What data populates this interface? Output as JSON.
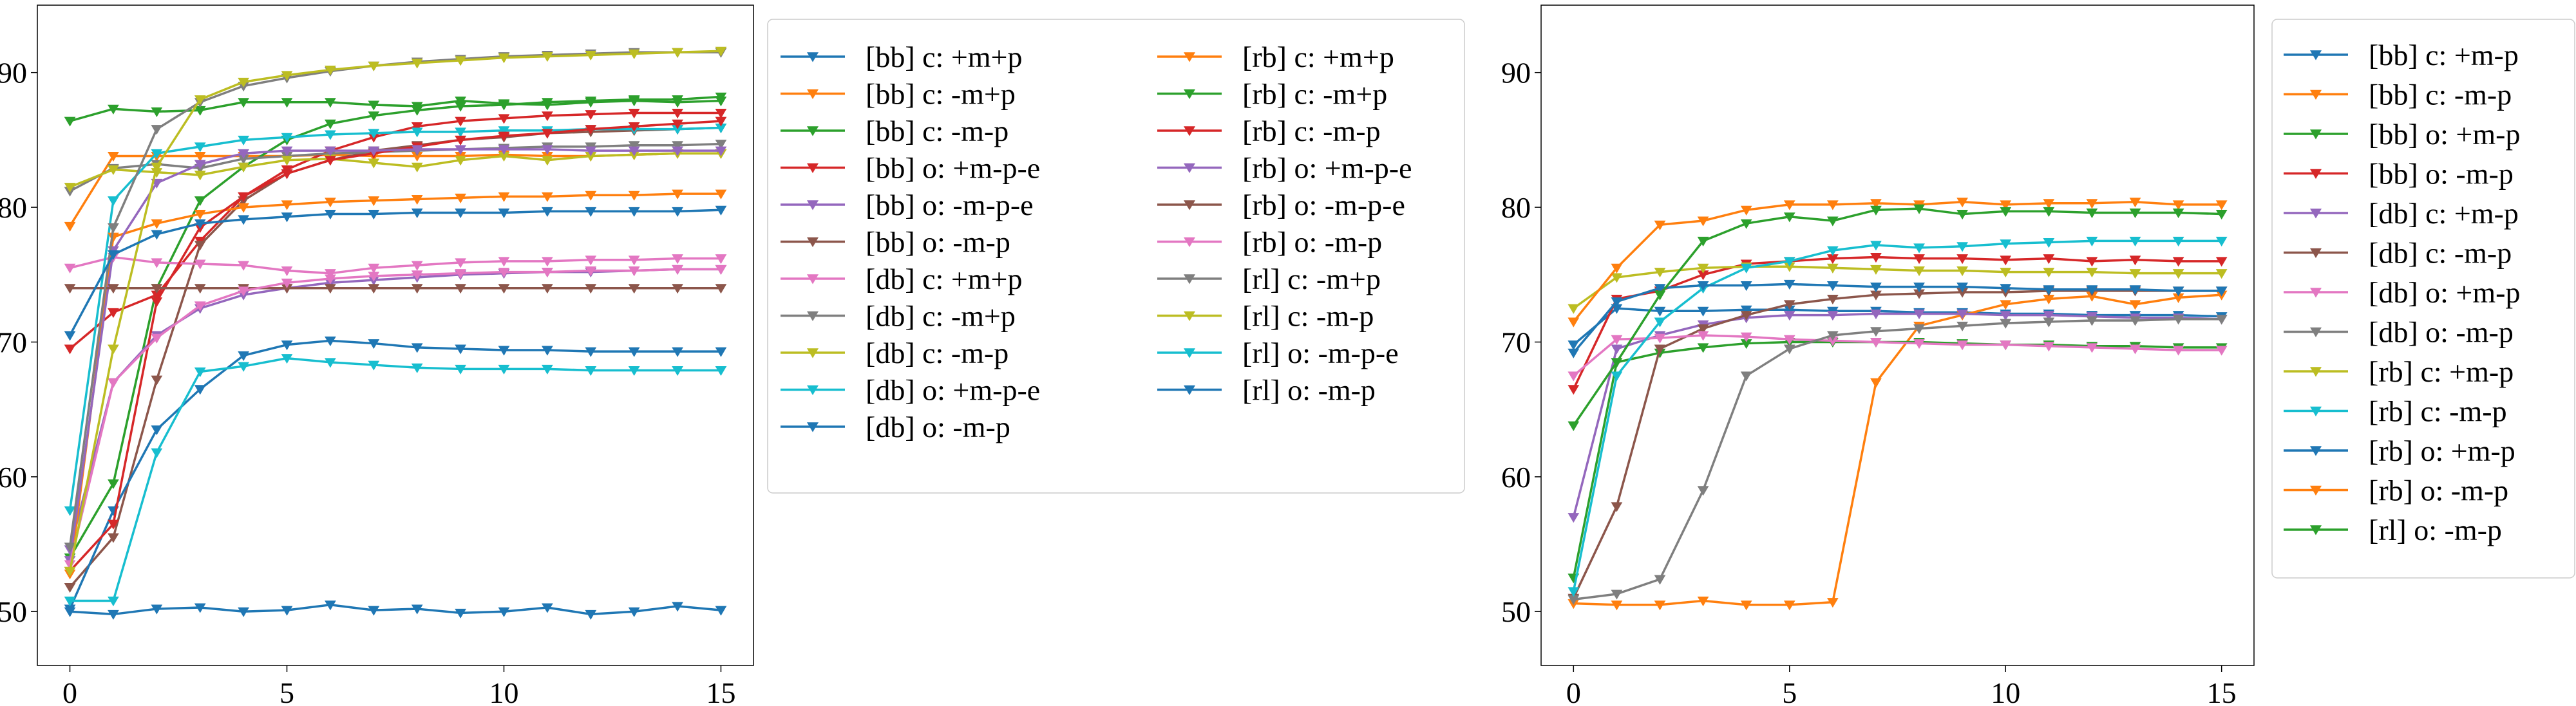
{
  "palette": [
    "#1f77b4",
    "#ff7f0e",
    "#2ca02c",
    "#d62728",
    "#9467bd",
    "#8c564b",
    "#e377c2",
    "#7f7f7f",
    "#bcbd22",
    "#17becf"
  ],
  "marker": "triangle-down",
  "chart_data": [
    {
      "type": "line",
      "title": "",
      "xlabel": "",
      "ylabel": "",
      "xlim": [
        -0.75,
        15.75
      ],
      "ylim": [
        46,
        95
      ],
      "xticks": [
        0,
        5,
        10,
        15
      ],
      "yticks": [
        50,
        60,
        70,
        80,
        90
      ],
      "grid": false,
      "legend_position": "right",
      "legend_columns": 2,
      "x": [
        0,
        1,
        2,
        3,
        4,
        5,
        6,
        7,
        8,
        9,
        10,
        11,
        12,
        13,
        14,
        15
      ],
      "series": [
        {
          "name": "[bb] c: +m+p",
          "color": "#1f77b4",
          "values": [
            50.0,
            49.8,
            50.2,
            50.3,
            50.0,
            50.1,
            50.5,
            50.1,
            50.2,
            49.9,
            50.0,
            50.3,
            49.8,
            50.0,
            50.4,
            50.1
          ]
        },
        {
          "name": "[bb] c: -m+p",
          "color": "#ff7f0e",
          "values": [
            78.6,
            83.8,
            83.8,
            83.8,
            83.8,
            83.8,
            83.9,
            83.8,
            83.8,
            83.8,
            83.9,
            83.8,
            83.8,
            83.9,
            84.0,
            84.0
          ]
        },
        {
          "name": "[bb] c: -m-p",
          "color": "#2ca02c",
          "values": [
            54.0,
            59.5,
            74.0,
            80.5,
            83.0,
            85.0,
            86.2,
            86.8,
            87.2,
            87.5,
            87.6,
            87.8,
            87.9,
            88.0,
            88.0,
            88.2
          ]
        },
        {
          "name": "[bb] o: +m-p-e",
          "color": "#d62728",
          "values": [
            69.5,
            72.2,
            73.5,
            77.5,
            80.8,
            82.8,
            84.2,
            85.2,
            86.0,
            86.4,
            86.6,
            86.8,
            86.9,
            87.0,
            87.0,
            87.0
          ]
        },
        {
          "name": "[bb] o: -m-p-e",
          "color": "#9467bd",
          "values": [
            54.6,
            67.0,
            70.5,
            72.5,
            73.5,
            74.0,
            74.4,
            74.6,
            74.8,
            75.0,
            75.1,
            75.2,
            75.2,
            75.3,
            75.4,
            75.4
          ]
        },
        {
          "name": "[bb] o: -m-p",
          "color": "#8c564b",
          "values": [
            51.8,
            55.5,
            67.2,
            77.2,
            80.5,
            82.5,
            83.5,
            84.2,
            84.6,
            85.0,
            85.2,
            85.5,
            85.6,
            85.7,
            85.8,
            85.9
          ]
        },
        {
          "name": "[db] c: +m+p",
          "color": "#e377c2",
          "values": [
            75.5,
            76.3,
            75.9,
            75.8,
            75.7,
            75.3,
            75.1,
            75.5,
            75.7,
            75.9,
            76.0,
            76.0,
            76.1,
            76.1,
            76.2,
            76.2
          ]
        },
        {
          "name": "[db] c: -m+p",
          "color": "#7f7f7f",
          "values": [
            81.2,
            82.9,
            83.2,
            82.9,
            83.6,
            83.8,
            84.0,
            84.1,
            84.2,
            84.3,
            84.4,
            84.5,
            84.5,
            84.6,
            84.6,
            84.7
          ]
        },
        {
          "name": "[db] c: -m-p",
          "color": "#bcbd22",
          "values": [
            81.5,
            82.8,
            82.6,
            82.4,
            83.0,
            83.5,
            83.6,
            83.3,
            83.0,
            83.5,
            83.8,
            83.5,
            83.8,
            83.9,
            84.0,
            84.0
          ]
        },
        {
          "name": "[db] o: +m-p-e",
          "color": "#17becf",
          "values": [
            57.5,
            80.5,
            84.0,
            84.5,
            85.0,
            85.2,
            85.4,
            85.5,
            85.6,
            85.6,
            85.7,
            85.7,
            85.8,
            85.8,
            85.8,
            85.9
          ]
        },
        {
          "name": "[db] o: -m-p",
          "color": "#1f77b4",
          "values": [
            50.2,
            57.5,
            63.5,
            66.5,
            69.0,
            69.8,
            70.1,
            69.9,
            69.6,
            69.5,
            69.4,
            69.4,
            69.3,
            69.3,
            69.3,
            69.3
          ]
        },
        {
          "name": "[rb] c: +m+p",
          "color": "#ff7f0e",
          "values": [
            52.8,
            77.8,
            78.8,
            79.5,
            80.0,
            80.2,
            80.4,
            80.5,
            80.6,
            80.7,
            80.8,
            80.8,
            80.9,
            80.9,
            81.0,
            81.0
          ]
        },
        {
          "name": "[rb] c: -m+p",
          "color": "#2ca02c",
          "values": [
            86.4,
            87.3,
            87.1,
            87.2,
            87.8,
            87.8,
            87.8,
            87.6,
            87.5,
            87.9,
            87.7,
            87.6,
            87.8,
            87.9,
            87.8,
            87.9
          ]
        },
        {
          "name": "[rb] c: -m-p",
          "color": "#d62728",
          "values": [
            53.0,
            56.5,
            73.0,
            78.5,
            80.8,
            82.5,
            83.5,
            84.0,
            84.5,
            85.0,
            85.3,
            85.5,
            85.8,
            86.0,
            86.2,
            86.4
          ]
        },
        {
          "name": "[rb] o: +m-p-e",
          "color": "#9467bd",
          "values": [
            53.8,
            76.8,
            81.8,
            83.2,
            84.0,
            84.2,
            84.2,
            84.2,
            84.3,
            84.3,
            84.3,
            84.3,
            84.2,
            84.2,
            84.2,
            84.2
          ]
        },
        {
          "name": "[rb] o: -m-p-e",
          "color": "#8c564b",
          "values": [
            74.0,
            74.0,
            74.0,
            74.0,
            74.0,
            74.0,
            74.0,
            74.0,
            74.0,
            74.0,
            74.0,
            74.0,
            74.0,
            74.0,
            74.0,
            74.0
          ]
        },
        {
          "name": "[rb] o: -m-p",
          "color": "#e377c2",
          "values": [
            53.5,
            67.0,
            70.3,
            72.7,
            73.8,
            74.4,
            74.7,
            74.9,
            75.0,
            75.1,
            75.2,
            75.2,
            75.3,
            75.3,
            75.4,
            75.4
          ]
        },
        {
          "name": "[rl] c: -m+p",
          "color": "#7f7f7f",
          "values": [
            54.8,
            78.5,
            85.8,
            87.8,
            89.0,
            89.6,
            90.1,
            90.5,
            90.8,
            91.0,
            91.2,
            91.3,
            91.4,
            91.5,
            91.5,
            91.5
          ]
        },
        {
          "name": "[rl] c: -m-p",
          "color": "#bcbd22",
          "values": [
            53.0,
            69.5,
            83.0,
            88.0,
            89.3,
            89.8,
            90.2,
            90.5,
            90.7,
            90.9,
            91.1,
            91.2,
            91.3,
            91.4,
            91.5,
            91.6
          ]
        },
        {
          "name": "[rl] o: -m-p-e",
          "color": "#17becf",
          "values": [
            50.8,
            50.8,
            61.8,
            67.8,
            68.2,
            68.8,
            68.5,
            68.3,
            68.1,
            68.0,
            68.0,
            68.0,
            67.9,
            67.9,
            67.9,
            67.9
          ]
        },
        {
          "name": "[rl] o: -m-p",
          "color": "#1f77b4",
          "values": [
            70.5,
            76.5,
            78.0,
            78.8,
            79.1,
            79.3,
            79.5,
            79.5,
            79.6,
            79.6,
            79.6,
            79.7,
            79.7,
            79.7,
            79.7,
            79.8
          ]
        }
      ]
    },
    {
      "type": "line",
      "title": "",
      "xlabel": "",
      "ylabel": "",
      "xlim": [
        -0.75,
        15.75
      ],
      "ylim": [
        46,
        95
      ],
      "xticks": [
        0,
        5,
        10,
        15
      ],
      "yticks": [
        50,
        60,
        70,
        80,
        90
      ],
      "grid": false,
      "legend_position": "outside right",
      "legend_columns": 1,
      "x": [
        0,
        1,
        2,
        3,
        4,
        5,
        6,
        7,
        8,
        9,
        10,
        11,
        12,
        13,
        14,
        15
      ],
      "series": [
        {
          "name": "[bb] c: +m-p",
          "color": "#1f77b4",
          "values": [
            69.8,
            72.5,
            72.3,
            72.3,
            72.4,
            72.4,
            72.3,
            72.3,
            72.2,
            72.2,
            72.1,
            72.1,
            72.0,
            72.0,
            72.0,
            71.9
          ]
        },
        {
          "name": "[bb] c: -m-p",
          "color": "#ff7f0e",
          "values": [
            50.6,
            50.5,
            50.5,
            50.8,
            50.5,
            50.5,
            50.7,
            67.0,
            71.2,
            72.0,
            72.8,
            73.2,
            73.4,
            72.8,
            73.3,
            73.5
          ]
        },
        {
          "name": "[bb] o: +m-p",
          "color": "#2ca02c",
          "values": [
            52.5,
            68.5,
            69.2,
            69.6,
            69.9,
            70.0,
            70.0,
            70.0,
            70.0,
            69.9,
            69.8,
            69.8,
            69.7,
            69.7,
            69.6,
            69.6
          ]
        },
        {
          "name": "[bb] o: -m-p",
          "color": "#d62728",
          "values": [
            66.5,
            73.2,
            73.8,
            75.0,
            75.8,
            76.0,
            76.2,
            76.3,
            76.2,
            76.2,
            76.1,
            76.2,
            76.0,
            76.1,
            76.0,
            76.0
          ]
        },
        {
          "name": "[db] c: +m-p",
          "color": "#9467bd",
          "values": [
            57.0,
            69.5,
            70.5,
            71.3,
            71.8,
            72.0,
            72.0,
            72.1,
            72.1,
            72.1,
            72.0,
            72.0,
            71.9,
            71.8,
            71.8,
            71.7
          ]
        },
        {
          "name": "[db] c: -m-p",
          "color": "#8c564b",
          "values": [
            51.0,
            57.8,
            69.5,
            71.0,
            72.0,
            72.8,
            73.2,
            73.5,
            73.6,
            73.7,
            73.7,
            73.8,
            73.8,
            73.8,
            73.8,
            73.8
          ]
        },
        {
          "name": "[db] o: +m-p",
          "color": "#e377c2",
          "values": [
            67.5,
            70.2,
            70.3,
            70.5,
            70.4,
            70.2,
            70.1,
            70.0,
            69.9,
            69.8,
            69.8,
            69.7,
            69.6,
            69.5,
            69.4,
            69.4
          ]
        },
        {
          "name": "[db] o: -m-p",
          "color": "#7f7f7f",
          "values": [
            50.9,
            51.3,
            52.4,
            59.0,
            67.5,
            69.5,
            70.5,
            70.8,
            71.0,
            71.2,
            71.4,
            71.5,
            71.6,
            71.6,
            71.7,
            71.7
          ]
        },
        {
          "name": "[rb] c: +m-p",
          "color": "#bcbd22",
          "values": [
            72.5,
            74.8,
            75.2,
            75.5,
            75.6,
            75.6,
            75.5,
            75.4,
            75.3,
            75.3,
            75.2,
            75.2,
            75.2,
            75.1,
            75.1,
            75.1
          ]
        },
        {
          "name": "[rb] c: -m-p",
          "color": "#17becf",
          "values": [
            51.5,
            67.5,
            71.5,
            74.0,
            75.5,
            76.0,
            76.8,
            77.2,
            77.0,
            77.1,
            77.3,
            77.4,
            77.5,
            77.5,
            77.5,
            77.5
          ]
        },
        {
          "name": "[rb] o: +m-p",
          "color": "#1f77b4",
          "values": [
            69.2,
            73.0,
            74.0,
            74.2,
            74.2,
            74.3,
            74.2,
            74.1,
            74.1,
            74.1,
            74.0,
            73.9,
            73.9,
            73.9,
            73.8,
            73.8
          ]
        },
        {
          "name": "[rb] o: -m-p",
          "color": "#ff7f0e",
          "values": [
            71.5,
            75.5,
            78.7,
            79.0,
            79.8,
            80.2,
            80.2,
            80.3,
            80.2,
            80.4,
            80.2,
            80.3,
            80.3,
            80.4,
            80.2,
            80.2
          ]
        },
        {
          "name": "[rl] o: -m-p",
          "color": "#2ca02c",
          "values": [
            63.8,
            68.5,
            73.5,
            77.5,
            78.8,
            79.3,
            79.0,
            79.8,
            79.9,
            79.5,
            79.7,
            79.7,
            79.6,
            79.6,
            79.6,
            79.5
          ]
        }
      ]
    }
  ]
}
